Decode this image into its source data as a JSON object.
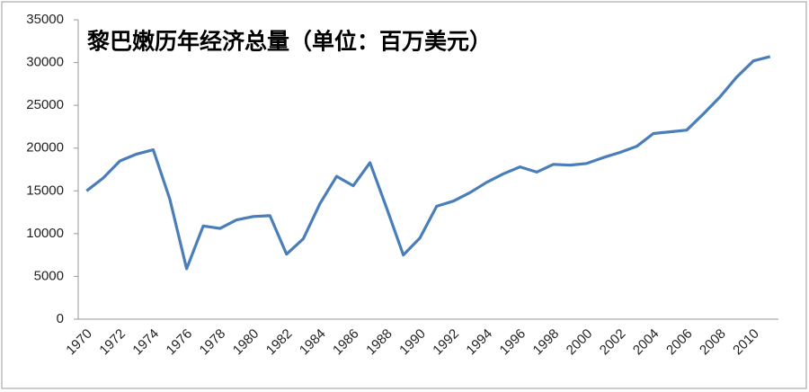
{
  "chart_data": {
    "type": "line",
    "title": "黎巴嫩历年经济总量（单位：百万美元）",
    "categories": [
      "1970",
      null,
      "1972",
      null,
      "1974",
      null,
      "1976",
      null,
      "1978",
      null,
      "1980",
      null,
      "1982",
      null,
      "1984",
      null,
      "1986",
      null,
      "1988",
      null,
      "1990",
      null,
      "1992",
      null,
      "1994",
      null,
      "1996",
      null,
      "1998",
      null,
      "2000",
      null,
      "2002",
      null,
      "2004",
      null,
      "2006",
      null,
      "2008",
      null,
      "2010",
      null
    ],
    "values": [
      15000,
      16500,
      18500,
      19300,
      19800,
      14000,
      5900,
      10900,
      10600,
      11600,
      12000,
      12100,
      7600,
      9400,
      13500,
      16700,
      15600,
      18300,
      13000,
      7500,
      9500,
      13200,
      13800,
      14800,
      16000,
      17000,
      17800,
      17200,
      18100,
      18000,
      18200,
      18900,
      19500,
      20200,
      21700,
      21900,
      22100,
      24000,
      26000,
      28300,
      30200,
      30700
    ],
    "color": "#4a7ebb",
    "ylim": [
      0,
      35000
    ],
    "yticks": [
      0,
      5000,
      10000,
      15000,
      20000,
      25000,
      30000,
      35000
    ],
    "grid": false
  }
}
